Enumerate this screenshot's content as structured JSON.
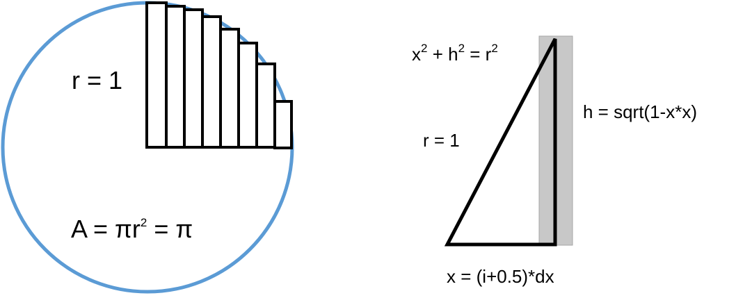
{
  "left": {
    "radius_label": "r = 1",
    "area": {
      "a": "A = πr",
      "exp": "2",
      "b": " = π"
    },
    "colors": {
      "circle_stroke": "#5b9bd5",
      "bar_stroke": "#000000",
      "bar_fill": "#ffffff"
    },
    "bars": {
      "count": 8,
      "icon": "riemann-rectangles"
    }
  },
  "right": {
    "equation": {
      "x": "x",
      "x_exp": "2",
      "mid": " + h",
      "h_exp": "2",
      "eq": " = r",
      "r_exp": "2"
    },
    "radius_label": "r = 1",
    "height_label": "h = sqrt(1-x*x)",
    "x_label": "x = (i+0.5)*dx",
    "colors": {
      "strip_fill": "#c8c8c8",
      "strip_stroke": "#a6a6a6",
      "triangle_stroke": "#000000"
    }
  }
}
